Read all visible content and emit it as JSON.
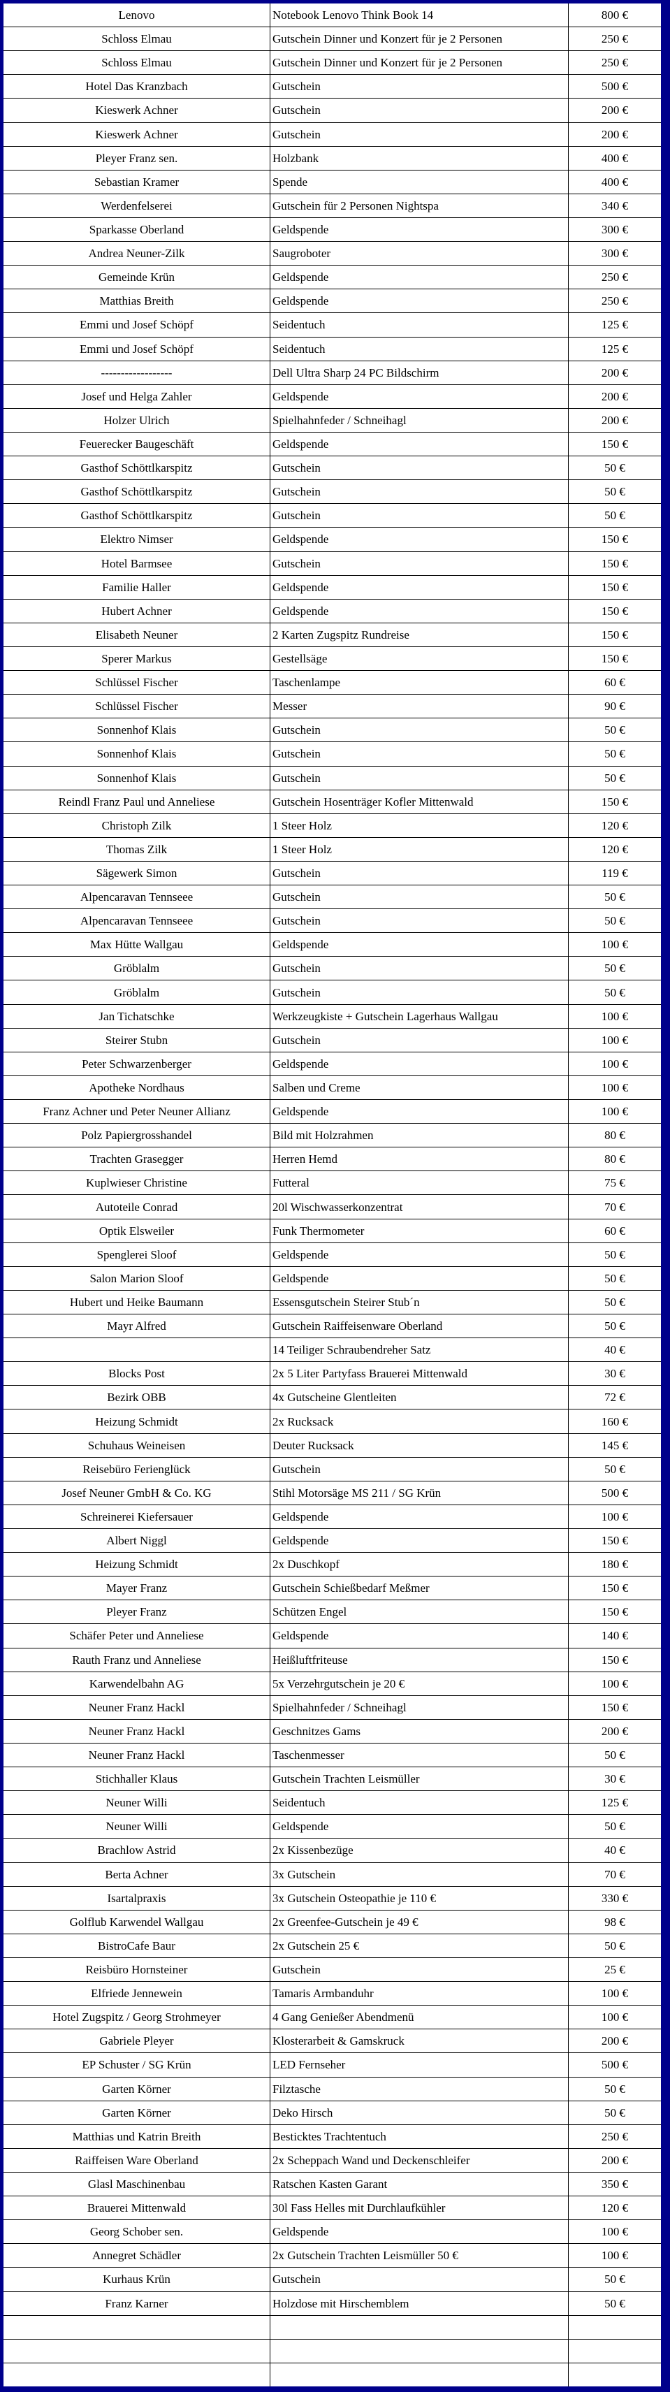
{
  "colors": {
    "outer_border": "#00008b",
    "grid_line": "#000000",
    "table_background": "#ffffff",
    "text": "#000000"
  },
  "table": {
    "description": "Donation list: donor, item, value",
    "currency": "€",
    "rows": [
      {
        "name": "Lenovo",
        "item": "Notebook Lenovo Think Book 14",
        "value": "800 €"
      },
      {
        "name": "Schloss Elmau",
        "item": "Gutschein Dinner und Konzert für je 2 Personen",
        "value": "250 €"
      },
      {
        "name": "Schloss Elmau",
        "item": "Gutschein Dinner und Konzert für je 2 Personen",
        "value": "250 €"
      },
      {
        "name": "Hotel Das Kranzbach",
        "item": "Gutschein",
        "value": "500 €"
      },
      {
        "name": "Kieswerk Achner",
        "item": "Gutschein",
        "value": "200 €"
      },
      {
        "name": "Kieswerk Achner",
        "item": "Gutschein",
        "value": "200 €"
      },
      {
        "name": "Pleyer Franz sen.",
        "item": "Holzbank",
        "value": "400 €"
      },
      {
        "name": "Sebastian Kramer",
        "item": "Spende",
        "value": "400 €"
      },
      {
        "name": "Werdenfelserei",
        "item": "Gutschein für 2 Personen Nightspa",
        "value": "340 €"
      },
      {
        "name": "Sparkasse Oberland",
        "item": "Geldspende",
        "value": "300 €"
      },
      {
        "name": "Andrea Neuner-Zilk",
        "item": "Saugroboter",
        "value": "300 €"
      },
      {
        "name": "Gemeinde Krün",
        "item": "Geldspende",
        "value": "250 €"
      },
      {
        "name": "Matthias Breith",
        "item": "Geldspende",
        "value": "250 €"
      },
      {
        "name": "Emmi und Josef Schöpf",
        "item": "Seidentuch",
        "value": "125 €"
      },
      {
        "name": "Emmi und Josef Schöpf",
        "item": "Seidentuch",
        "value": "125 €"
      },
      {
        "name": "------------------",
        "item": "Dell Ultra Sharp 24 PC Bildschirm",
        "value": "200 €"
      },
      {
        "name": "Josef und Helga Zahler",
        "item": "Geldspende",
        "value": "200 €"
      },
      {
        "name": "Holzer Ulrich",
        "item": "Spielhahnfeder / Schneihagl",
        "value": "200 €"
      },
      {
        "name": "Feuerecker Baugeschäft",
        "item": "Geldspende",
        "value": "150 €"
      },
      {
        "name": "Gasthof Schöttlkarspitz",
        "item": "Gutschein",
        "value": "50 €"
      },
      {
        "name": "Gasthof Schöttlkarspitz",
        "item": "Gutschein",
        "value": "50 €"
      },
      {
        "name": "Gasthof Schöttlkarspitz",
        "item": "Gutschein",
        "value": "50 €"
      },
      {
        "name": "Elektro Nimser",
        "item": "Geldspende",
        "value": "150 €"
      },
      {
        "name": "Hotel Barmsee",
        "item": "Gutschein",
        "value": "150 €"
      },
      {
        "name": "Familie Haller",
        "item": "Geldspende",
        "value": "150 €"
      },
      {
        "name": "Hubert Achner",
        "item": "Geldspende",
        "value": "150 €"
      },
      {
        "name": "Elisabeth Neuner",
        "item": "2 Karten Zugspitz Rundreise",
        "value": "150 €"
      },
      {
        "name": "Sperer Markus",
        "item": "Gestellsäge",
        "value": "150 €"
      },
      {
        "name": "Schlüssel Fischer",
        "item": "Taschenlampe",
        "value": "60 €"
      },
      {
        "name": "Schlüssel Fischer",
        "item": "Messer",
        "value": "90 €"
      },
      {
        "name": "Sonnenhof Klais",
        "item": "Gutschein",
        "value": "50 €"
      },
      {
        "name": "Sonnenhof Klais",
        "item": "Gutschein",
        "value": "50 €"
      },
      {
        "name": "Sonnenhof Klais",
        "item": "Gutschein",
        "value": "50 €"
      },
      {
        "name": "Reindl Franz Paul und Anneliese",
        "item": "Gutschein Hosenträger Kofler Mittenwald",
        "value": "150 €"
      },
      {
        "name": "Christoph Zilk",
        "item": "1 Steer Holz",
        "value": "120 €"
      },
      {
        "name": "Thomas Zilk",
        "item": "1 Steer Holz",
        "value": "120 €"
      },
      {
        "name": "Sägewerk Simon",
        "item": "Gutschein",
        "value": "119 €"
      },
      {
        "name": "Alpencaravan Tennseee",
        "item": "Gutschein",
        "value": "50 €"
      },
      {
        "name": "Alpencaravan Tennseee",
        "item": "Gutschein",
        "value": "50 €"
      },
      {
        "name": "Max Hütte Wallgau",
        "item": "Geldspende",
        "value": "100 €"
      },
      {
        "name": "Gröblalm",
        "item": "Gutschein",
        "value": "50 €"
      },
      {
        "name": "Gröblalm",
        "item": "Gutschein",
        "value": "50 €"
      },
      {
        "name": "Jan Tichatschke",
        "item": "Werkzeugkiste + Gutschein Lagerhaus Wallgau",
        "value": "100 €"
      },
      {
        "name": "Steirer Stubn",
        "item": "Gutschein",
        "value": "100 €"
      },
      {
        "name": "Peter Schwarzenberger",
        "item": "Geldspende",
        "value": "100 €"
      },
      {
        "name": "Apotheke Nordhaus",
        "item": "Salben und Creme",
        "value": "100 €"
      },
      {
        "name": "Franz Achner und Peter Neuner Allianz",
        "item": "Geldspende",
        "value": "100 €"
      },
      {
        "name": "Polz Papiergrosshandel",
        "item": "Bild mit Holzrahmen",
        "value": "80 €"
      },
      {
        "name": "Trachten Grasegger",
        "item": "Herren Hemd",
        "value": "80 €"
      },
      {
        "name": "Kuplwieser Christine",
        "item": "Futteral",
        "value": "75 €"
      },
      {
        "name": "Autoteile Conrad",
        "item": "20l Wischwasserkonzentrat",
        "value": "70 €"
      },
      {
        "name": "Optik Elsweiler",
        "item": "Funk Thermometer",
        "value": "60 €"
      },
      {
        "name": "Spenglerei Sloof",
        "item": "Geldspende",
        "value": "50 €"
      },
      {
        "name": "Salon Marion Sloof",
        "item": "Geldspende",
        "value": "50 €"
      },
      {
        "name": "Hubert und Heike Baumann",
        "item": "Essensgutschein Steirer Stub´n",
        "value": "50 €"
      },
      {
        "name": "Mayr Alfred",
        "item": "Gutschein Raiffeisenware Oberland",
        "value": "50 €"
      },
      {
        "name": "",
        "item": "14 Teiliger Schraubendreher Satz",
        "value": "40 €"
      },
      {
        "name": "Blocks Post",
        "item": "2x 5 Liter Partyfass Brauerei Mittenwald",
        "value": "30 €"
      },
      {
        "name": "Bezirk OBB",
        "item": "4x Gutscheine Glentleiten",
        "value": "72 €"
      },
      {
        "name": "Heizung Schmidt",
        "item": "2x Rucksack",
        "value": "160 €"
      },
      {
        "name": "Schuhaus Weineisen",
        "item": "Deuter Rucksack",
        "value": "145 €"
      },
      {
        "name": "Reisebüro Ferienglück",
        "item": "Gutschein",
        "value": "50 €"
      },
      {
        "name": "Josef Neuner GmbH & Co. KG",
        "item": "Stihl Motorsäge MS 211 / SG Krün",
        "value": "500 €"
      },
      {
        "name": "Schreinerei Kiefersauer",
        "item": "Geldspende",
        "value": "100 €"
      },
      {
        "name": "Albert Niggl",
        "item": "Geldspende",
        "value": "150 €"
      },
      {
        "name": "Heizung Schmidt",
        "item": "2x Duschkopf",
        "value": "180 €"
      },
      {
        "name": "Mayer Franz",
        "item": "Gutschein Schießbedarf Meßmer",
        "value": "150 €"
      },
      {
        "name": "Pleyer Franz",
        "item": "Schützen Engel",
        "value": "150 €"
      },
      {
        "name": "Schäfer Peter und Anneliese",
        "item": "Geldspende",
        "value": "140 €"
      },
      {
        "name": "Rauth Franz und Anneliese",
        "item": "Heißluftfriteuse",
        "value": "150 €"
      },
      {
        "name": "Karwendelbahn AG",
        "item": "5x Verzehrgutschein je 20 €",
        "value": "100 €"
      },
      {
        "name": "Neuner Franz Hackl",
        "item": "Spielhahnfeder / Schneihagl",
        "value": "150 €"
      },
      {
        "name": "Neuner Franz Hackl",
        "item": "Geschnitzes Gams",
        "value": "200 €"
      },
      {
        "name": "Neuner Franz Hackl",
        "item": "Taschenmesser",
        "value": "50 €"
      },
      {
        "name": "Stichhaller Klaus",
        "item": "Gutschein Trachten Leismüller",
        "value": "30 €"
      },
      {
        "name": "Neuner Willi",
        "item": "Seidentuch",
        "value": "125 €"
      },
      {
        "name": "Neuner Willi",
        "item": "Geldspende",
        "value": "50 €"
      },
      {
        "name": "Brachlow Astrid",
        "item": "2x Kissenbezüge",
        "value": "40 €"
      },
      {
        "name": "Berta Achner",
        "item": "3x Gutschein",
        "value": "70 €"
      },
      {
        "name": "Isartalpraxis",
        "item": "3x Gutschein Osteopathie je 110 €",
        "value": "330 €"
      },
      {
        "name": "Golflub Karwendel Wallgau",
        "item": "2x Greenfee-Gutschein je 49 €",
        "value": "98 €"
      },
      {
        "name": "BistroCafe Baur",
        "item": "2x Gutschein 25 €",
        "value": "50 €"
      },
      {
        "name": "Reisbüro Hornsteiner",
        "item": "Gutschein",
        "value": "25 €"
      },
      {
        "name": "Elfriede Jennewein",
        "item": "Tamaris Armbanduhr",
        "value": "100 €"
      },
      {
        "name": "Hotel Zugspitz / Georg Strohmeyer",
        "item": "4 Gang Genießer Abendmenü",
        "value": "100 €"
      },
      {
        "name": "Gabriele Pleyer",
        "item": "Klosterarbeit & Gamskruck",
        "value": "200 €"
      },
      {
        "name": "EP Schuster / SG Krün",
        "item": "LED Fernseher",
        "value": "500 €"
      },
      {
        "name": "Garten Körner",
        "item": "Filztasche",
        "value": "50 €"
      },
      {
        "name": "Garten Körner",
        "item": "Deko Hirsch",
        "value": "50 €"
      },
      {
        "name": "Matthias und Katrin Breith",
        "item": "Besticktes Trachtentuch",
        "value": "250 €"
      },
      {
        "name": "Raiffeisen Ware Oberland",
        "item": "2x Scheppach Wand und Deckenschleifer",
        "value": "200 €"
      },
      {
        "name": "Glasl Maschinenbau",
        "item": "Ratschen Kasten Garant",
        "value": "350 €"
      },
      {
        "name": "Brauerei Mittenwald",
        "item": "30l Fass Helles mit Durchlaufkühler",
        "value": "120 €"
      },
      {
        "name": "Georg Schober sen.",
        "item": "Geldspende",
        "value": "100 €"
      },
      {
        "name": "Annegret Schädler",
        "item": "2x Gutschein Trachten Leismüller 50 €",
        "value": "100 €"
      },
      {
        "name": "Kurhaus Krün",
        "item": "Gutschein",
        "value": "50 €"
      },
      {
        "name": "Franz Karner",
        "item": "Holzdose mit Hirschemblem",
        "value": "50 €"
      },
      {
        "name": "",
        "item": "",
        "value": ""
      },
      {
        "name": "",
        "item": "",
        "value": ""
      },
      {
        "name": "",
        "item": "",
        "value": ""
      }
    ]
  }
}
